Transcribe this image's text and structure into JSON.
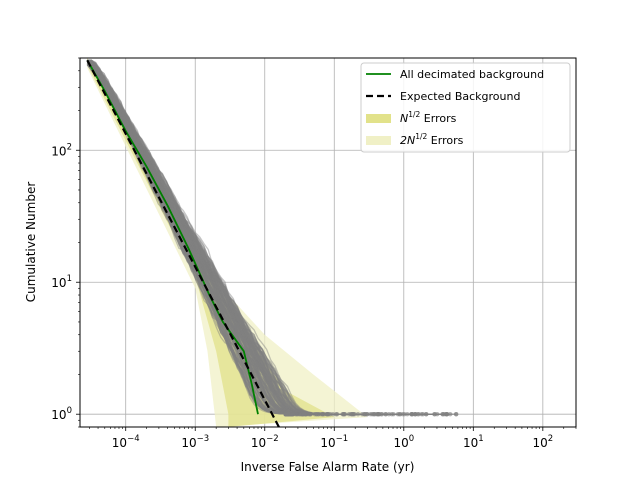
{
  "chart_data": {
    "type": "line",
    "xlabel": "Inverse False Alarm Rate (yr)",
    "ylabel": "Cumulative Number",
    "xscale": "log",
    "yscale": "log",
    "xlim": [
      2.2e-05,
      300
    ],
    "ylim": [
      0.8,
      500
    ],
    "grid": true,
    "legend_placement": "top-right",
    "x_ticks": [
      {
        "value": 0.0001,
        "base": "10",
        "exp": "−4"
      },
      {
        "value": 0.001,
        "base": "10",
        "exp": "−3"
      },
      {
        "value": 0.01,
        "base": "10",
        "exp": "−2"
      },
      {
        "value": 0.1,
        "base": "10",
        "exp": "−1"
      },
      {
        "value": 1,
        "base": "10",
        "exp": "0"
      },
      {
        "value": 10,
        "base": "10",
        "exp": "1"
      },
      {
        "value": 100,
        "base": "10",
        "exp": "2"
      }
    ],
    "y_ticks": [
      {
        "value": 1,
        "base": "10",
        "exp": "0"
      },
      {
        "value": 10,
        "base": "10",
        "exp": "1"
      },
      {
        "value": 100,
        "base": "10",
        "exp": "2"
      }
    ],
    "legend": [
      {
        "key": "all",
        "label": "All decimated background",
        "style": "line",
        "color": "#008000"
      },
      {
        "key": "expected",
        "label": "Expected Background",
        "style": "dashed",
        "color": "#000000"
      },
      {
        "key": "n",
        "label_main": "N",
        "label_sup": "1/2",
        "label_rest": " Errors",
        "style": "patch",
        "color": "#e2e28a"
      },
      {
        "key": "twon",
        "label_main": "2N",
        "label_sup": "1/2",
        "label_rest": " Errors",
        "style": "patch",
        "color": "#f0f0c6"
      }
    ],
    "series": [
      {
        "name": "All decimated background",
        "color": "#008000",
        "points": [
          [
            2.8e-05,
            480
          ],
          [
            5e-05,
            280
          ],
          [
            0.0001,
            140
          ],
          [
            0.0002,
            75
          ],
          [
            0.0004,
            38
          ],
          [
            0.0008,
            18
          ],
          [
            0.0016,
            8
          ],
          [
            0.0025,
            5
          ],
          [
            0.005,
            3
          ],
          [
            0.0065,
            1.7
          ],
          [
            0.008,
            1
          ]
        ]
      },
      {
        "name": "Expected Background",
        "color": "#000000",
        "points": [
          [
            2.8e-05,
            480
          ],
          [
            0.016,
            0.8
          ]
        ]
      }
    ],
    "error_bands": [
      {
        "name": "N^1/2 Errors",
        "color": "#e2e28a",
        "upper": [
          [
            2.8e-05,
            500
          ],
          [
            0.001,
            15
          ],
          [
            0.003,
            7
          ],
          [
            0.008,
            3
          ],
          [
            0.02,
            1.5
          ],
          [
            0.1,
            0.95
          ]
        ],
        "lower": [
          [
            2.8e-05,
            440
          ],
          [
            0.001,
            11
          ],
          [
            0.002,
            3
          ],
          [
            0.003,
            1
          ],
          [
            0.003,
            0.8
          ]
        ]
      },
      {
        "name": "2N^1/2 Errors",
        "color": "#f0f0c6",
        "upper": [
          [
            2.8e-05,
            500
          ],
          [
            0.001,
            17
          ],
          [
            0.003,
            8
          ],
          [
            0.01,
            4
          ],
          [
            0.05,
            2
          ],
          [
            0.3,
            0.95
          ]
        ],
        "lower": [
          [
            2.8e-05,
            420
          ],
          [
            0.001,
            9
          ],
          [
            0.0015,
            3
          ],
          [
            0.002,
            0.8
          ]
        ]
      }
    ],
    "trial_curves": {
      "color": "#808080",
      "count": 160,
      "y_start": 480,
      "x_start": 2.8e-05,
      "x_end_range": [
        0.02,
        6.5
      ],
      "slope": -1.0,
      "scatter_y": 1.0
    }
  }
}
